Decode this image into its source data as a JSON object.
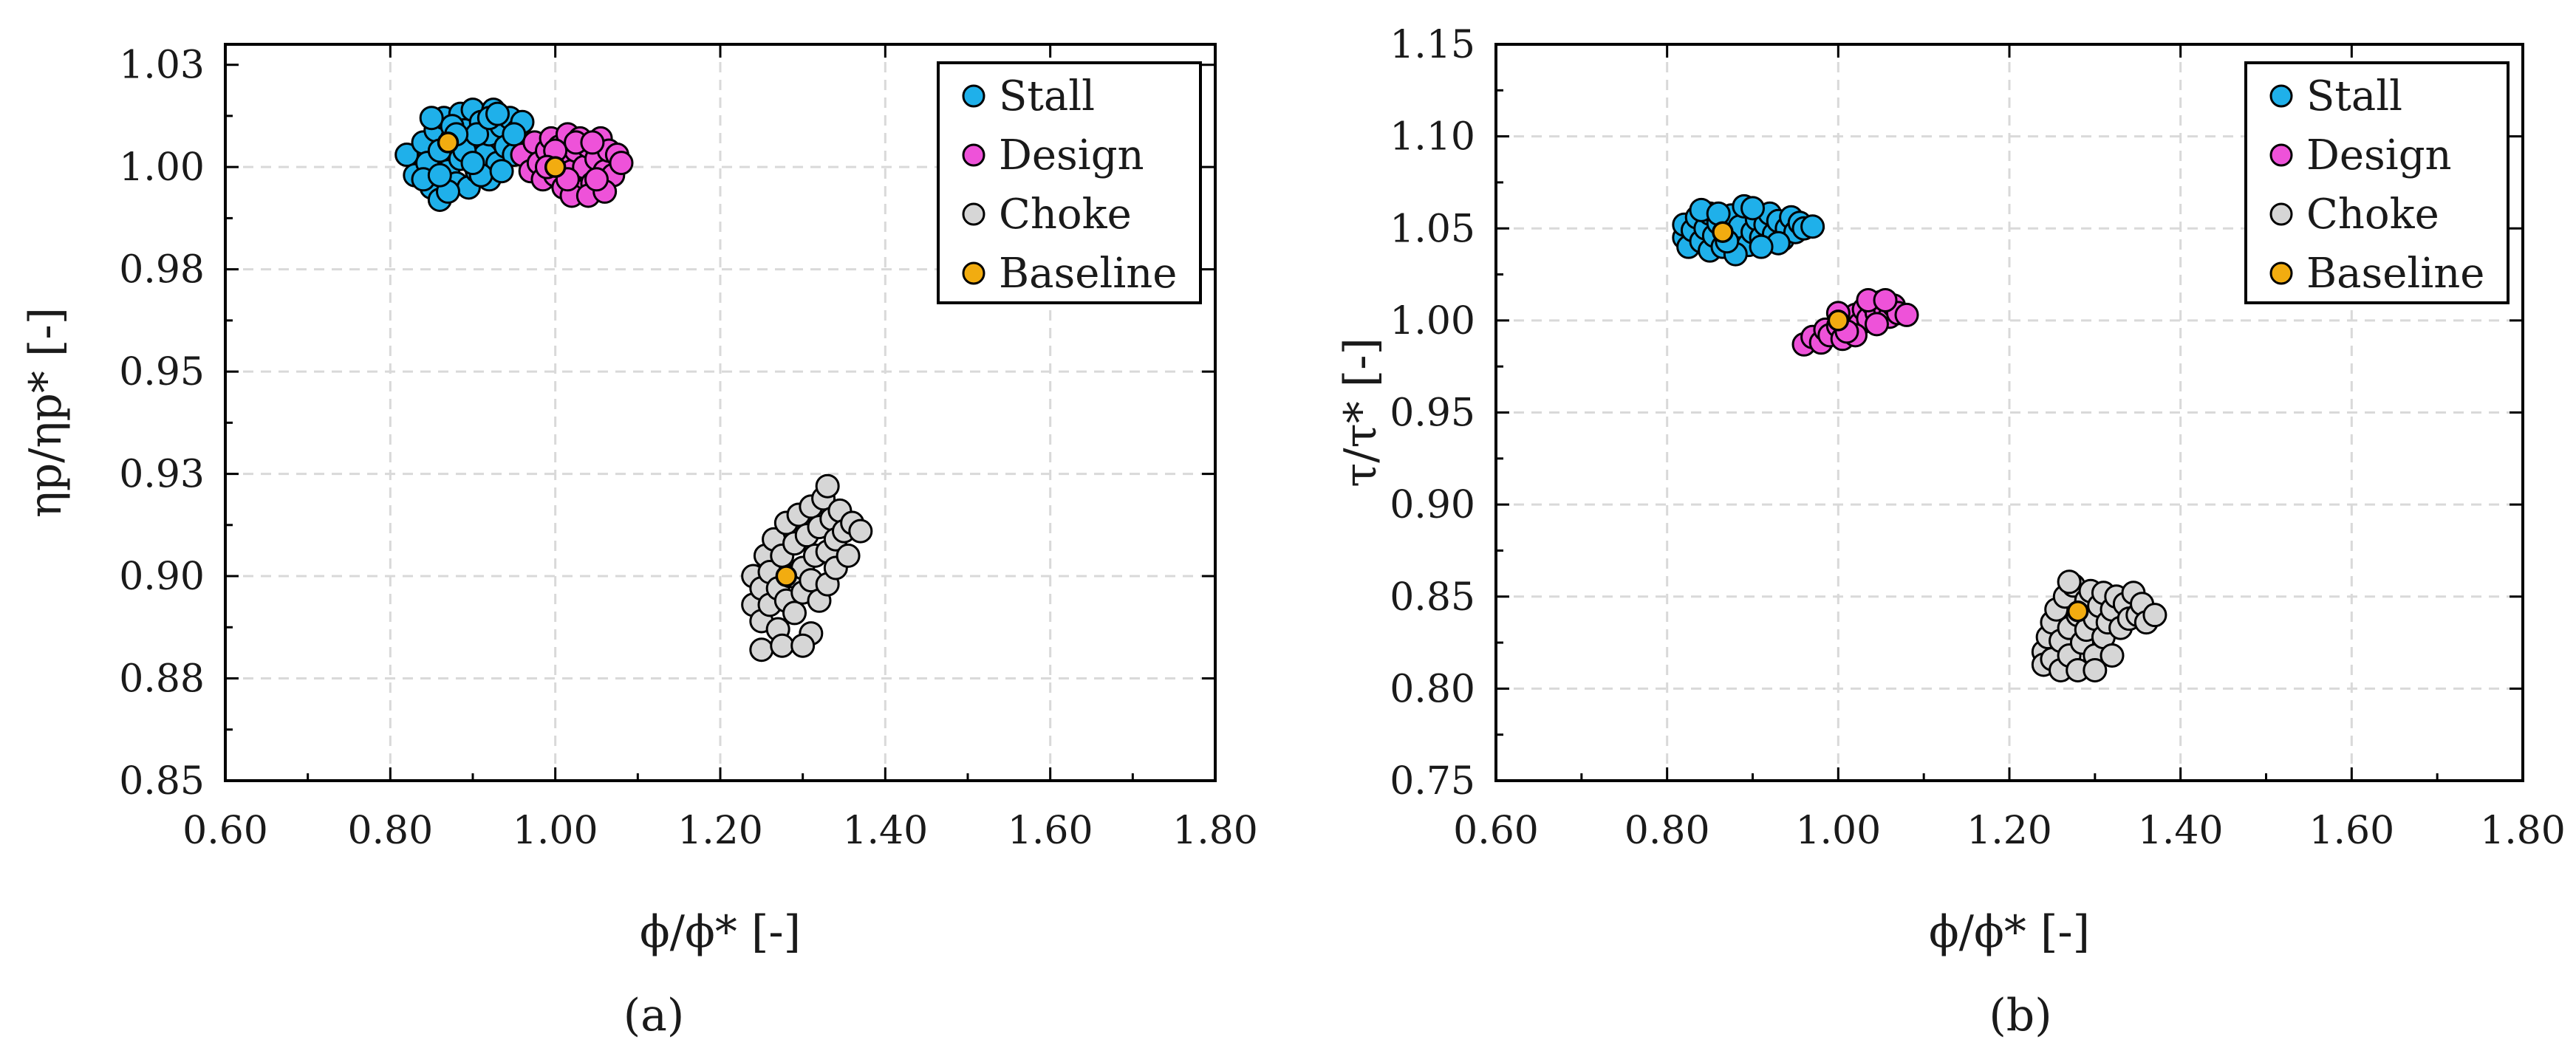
{
  "colors": {
    "stall": "#1fb0ea",
    "design": "#ee52d9",
    "choke": "#d6d6d6",
    "baseline": "#f2ac10"
  },
  "chart_data": [
    {
      "type": "scatter",
      "caption": "(a)",
      "xlabel": "ϕ/ϕ* [-]",
      "ylabel": "ηp/ηp* [-]",
      "xlim": [
        0.6,
        1.8
      ],
      "ylim": [
        0.85,
        1.03
      ],
      "xticks": [
        0.6,
        0.8,
        1.0,
        1.2,
        1.4,
        1.6,
        1.8
      ],
      "xtick_labels": [
        "0.60",
        "0.80",
        "1.00",
        "1.20",
        "1.40",
        "1.60",
        "1.80"
      ],
      "yticks": [
        0.85,
        0.875,
        0.9,
        0.925,
        0.95,
        0.975,
        1.0,
        1.025
      ],
      "ytick_labels": [
        "0.85",
        "0.88",
        "0.90",
        "0.93",
        "0.95",
        "0.98",
        "1.00",
        "1.03"
      ],
      "grid": true,
      "legend_position": "top-right",
      "series": [
        {
          "name": "Stall",
          "color_key": "stall",
          "points": [
            [
              0.82,
              1.003
            ],
            [
              0.83,
              0.998
            ],
            [
              0.84,
              1.006
            ],
            [
              0.845,
              1.001
            ],
            [
              0.85,
              0.995
            ],
            [
              0.855,
              1.009
            ],
            [
              0.86,
              0.992
            ],
            [
              0.86,
              1.004
            ],
            [
              0.865,
              1.012
            ],
            [
              0.87,
              0.999
            ],
            [
              0.875,
              1.007
            ],
            [
              0.88,
              0.996
            ],
            [
              0.885,
              1.013
            ],
            [
              0.885,
              1.002
            ],
            [
              0.89,
              1.009
            ],
            [
              0.895,
              0.995
            ],
            [
              0.9,
              1.005
            ],
            [
              0.9,
              1.014
            ],
            [
              0.905,
              0.999
            ],
            [
              0.91,
              1.011
            ],
            [
              0.915,
              1.003
            ],
            [
              0.92,
              0.997
            ],
            [
              0.92,
              1.008
            ],
            [
              0.925,
              1.014
            ],
            [
              0.93,
              1.001
            ],
            [
              0.935,
              1.01
            ],
            [
              0.94,
              1.005
            ],
            [
              0.945,
              1.012
            ],
            [
              0.95,
              1.003
            ],
            [
              0.955,
              1.009
            ],
            [
              0.96,
              1.011
            ],
            [
              0.875,
              1.01
            ],
            [
              0.89,
              1.004
            ],
            [
              0.905,
              1.008
            ],
            [
              0.92,
              1.012
            ],
            [
              0.87,
              0.994
            ],
            [
              0.91,
              0.998
            ],
            [
              0.935,
              0.999
            ],
            [
              0.85,
              1.012
            ],
            [
              0.84,
              0.997
            ],
            [
              0.93,
              1.013
            ],
            [
              0.88,
              1.008
            ],
            [
              0.86,
              0.998
            ],
            [
              0.9,
              1.001
            ],
            [
              0.95,
              1.008
            ]
          ]
        },
        {
          "name": "Design",
          "color_key": "design",
          "points": [
            [
              0.96,
              1.003
            ],
            [
              0.97,
              0.999
            ],
            [
              0.975,
              1.006
            ],
            [
              0.98,
              1.001
            ],
            [
              0.985,
              0.997
            ],
            [
              0.99,
              1.004
            ],
            [
              0.995,
              1.007
            ],
            [
              1.0,
              0.998
            ],
            [
              1.005,
              1.005
            ],
            [
              1.01,
              0.995
            ],
            [
              1.01,
              1.002
            ],
            [
              1.015,
              1.008
            ],
            [
              1.02,
              0.999
            ],
            [
              1.025,
              1.004
            ],
            [
              1.03,
              0.994
            ],
            [
              1.03,
              1.007
            ],
            [
              1.035,
              1.0
            ],
            [
              1.04,
              1.005
            ],
            [
              1.045,
              0.996
            ],
            [
              1.05,
              1.002
            ],
            [
              1.055,
              1.007
            ],
            [
              1.06,
              0.999
            ],
            [
              1.065,
              1.004
            ],
            [
              1.07,
              0.998
            ],
            [
              1.075,
              1.003
            ],
            [
              1.08,
              1.001
            ],
            [
              1.02,
              0.993
            ],
            [
              1.04,
              0.993
            ],
            [
              1.06,
              0.994
            ],
            [
              1.0,
              1.004
            ],
            [
              1.025,
              1.006
            ],
            [
              1.045,
              1.006
            ],
            [
              1.015,
              0.997
            ],
            [
              1.05,
              0.997
            ],
            [
              0.99,
              1.0
            ]
          ]
        },
        {
          "name": "Choke",
          "color_key": "choke",
          "points": [
            [
              1.24,
              0.9
            ],
            [
              1.24,
              0.893
            ],
            [
              1.25,
              0.897
            ],
            [
              1.25,
              0.889
            ],
            [
              1.255,
              0.905
            ],
            [
              1.26,
              0.901
            ],
            [
              1.26,
              0.893
            ],
            [
              1.265,
              0.909
            ],
            [
              1.27,
              0.897
            ],
            [
              1.27,
              0.887
            ],
            [
              1.275,
              0.905
            ],
            [
              1.28,
              0.913
            ],
            [
              1.28,
              0.894
            ],
            [
              1.285,
              0.9
            ],
            [
              1.29,
              0.908
            ],
            [
              1.29,
              0.891
            ],
            [
              1.295,
              0.915
            ],
            [
              1.3,
              0.902
            ],
            [
              1.3,
              0.896
            ],
            [
              1.305,
              0.91
            ],
            [
              1.31,
              0.917
            ],
            [
              1.31,
              0.899
            ],
            [
              1.315,
              0.905
            ],
            [
              1.32,
              0.912
            ],
            [
              1.32,
              0.894
            ],
            [
              1.325,
              0.919
            ],
            [
              1.33,
              0.906
            ],
            [
              1.33,
              0.898
            ],
            [
              1.335,
              0.914
            ],
            [
              1.34,
              0.909
            ],
            [
              1.34,
              0.902
            ],
            [
              1.345,
              0.916
            ],
            [
              1.35,
              0.911
            ],
            [
              1.355,
              0.905
            ],
            [
              1.36,
              0.913
            ],
            [
              1.37,
              0.911
            ],
            [
              1.33,
              0.922
            ],
            [
              1.31,
              0.886
            ],
            [
              1.25,
              0.882
            ],
            [
              1.275,
              0.883
            ],
            [
              1.3,
              0.883
            ]
          ]
        },
        {
          "name": "Baseline",
          "color_key": "baseline",
          "points": [
            [
              0.87,
              1.006
            ],
            [
              1.0,
              1.0
            ],
            [
              1.28,
              0.9
            ]
          ]
        }
      ]
    },
    {
      "type": "scatter",
      "caption": "(b)",
      "xlabel": "ϕ/ϕ* [-]",
      "ylabel": "τ/τ* [-]",
      "xlim": [
        0.6,
        1.8
      ],
      "ylim": [
        0.75,
        1.15
      ],
      "xticks": [
        0.6,
        0.8,
        1.0,
        1.2,
        1.4,
        1.6,
        1.8
      ],
      "xtick_labels": [
        "0.60",
        "0.80",
        "1.00",
        "1.20",
        "1.40",
        "1.60",
        "1.80"
      ],
      "yticks": [
        0.75,
        0.8,
        0.85,
        0.9,
        0.95,
        1.0,
        1.05,
        1.1,
        1.15
      ],
      "ytick_labels": [
        "0.75",
        "0.80",
        "0.85",
        "0.90",
        "0.95",
        "1.00",
        "1.05",
        "1.10",
        "1.15"
      ],
      "grid": true,
      "legend_position": "top-right",
      "series": [
        {
          "name": "Stall",
          "color_key": "stall",
          "points": [
            [
              0.82,
              1.045
            ],
            [
              0.82,
              1.052
            ],
            [
              0.825,
              1.04
            ],
            [
              0.83,
              1.049
            ],
            [
              0.835,
              1.056
            ],
            [
              0.84,
              1.043
            ],
            [
              0.845,
              1.05
            ],
            [
              0.85,
              1.058
            ],
            [
              0.85,
              1.038
            ],
            [
              0.855,
              1.046
            ],
            [
              0.86,
              1.053
            ],
            [
              0.865,
              1.04
            ],
            [
              0.87,
              1.049
            ],
            [
              0.875,
              1.057
            ],
            [
              0.88,
              1.044
            ],
            [
              0.885,
              1.051
            ],
            [
              0.89,
              1.062
            ],
            [
              0.895,
              1.041
            ],
            [
              0.9,
              1.048
            ],
            [
              0.905,
              1.055
            ],
            [
              0.91,
              1.045
            ],
            [
              0.915,
              1.052
            ],
            [
              0.92,
              1.058
            ],
            [
              0.925,
              1.047
            ],
            [
              0.93,
              1.054
            ],
            [
              0.935,
              1.044
            ],
            [
              0.94,
              1.05
            ],
            [
              0.945,
              1.056
            ],
            [
              0.95,
              1.048
            ],
            [
              0.955,
              1.053
            ],
            [
              0.96,
              1.05
            ],
            [
              0.97,
              1.051
            ],
            [
              0.84,
              1.06
            ],
            [
              0.88,
              1.036
            ],
            [
              0.9,
              1.061
            ],
            [
              0.86,
              1.058
            ],
            [
              0.93,
              1.042
            ],
            [
              0.87,
              1.043
            ],
            [
              0.91,
              1.04
            ]
          ]
        },
        {
          "name": "Design",
          "color_key": "design",
          "points": [
            [
              0.96,
              0.987
            ],
            [
              0.97,
              0.991
            ],
            [
              0.98,
              0.988
            ],
            [
              0.985,
              0.995
            ],
            [
              0.99,
              0.992
            ],
            [
              1.0,
              0.997
            ],
            [
              1.005,
              0.99
            ],
            [
              1.01,
              1.0
            ],
            [
              1.015,
              0.995
            ],
            [
              1.02,
              1.003
            ],
            [
              1.025,
              0.998
            ],
            [
              1.03,
              1.006
            ],
            [
              1.035,
              1.001
            ],
            [
              1.04,
              1.009
            ],
            [
              1.045,
              1.004
            ],
            [
              1.05,
              1.01
            ],
            [
              1.055,
              1.006
            ],
            [
              1.06,
              1.002
            ],
            [
              1.065,
              1.008
            ],
            [
              1.07,
              1.004
            ],
            [
              1.08,
              1.003
            ],
            [
              1.0,
              1.004
            ],
            [
              1.02,
              0.992
            ],
            [
              1.045,
              0.998
            ],
            [
              1.035,
              1.011
            ],
            [
              1.01,
              0.994
            ],
            [
              1.055,
              1.011
            ]
          ]
        },
        {
          "name": "Choke",
          "color_key": "choke",
          "points": [
            [
              1.24,
              0.82
            ],
            [
              1.24,
              0.813
            ],
            [
              1.245,
              0.828
            ],
            [
              1.25,
              0.836
            ],
            [
              1.25,
              0.816
            ],
            [
              1.255,
              0.843
            ],
            [
              1.26,
              0.826
            ],
            [
              1.26,
              0.81
            ],
            [
              1.265,
              0.85
            ],
            [
              1.27,
              0.833
            ],
            [
              1.27,
              0.818
            ],
            [
              1.275,
              0.856
            ],
            [
              1.28,
              0.84
            ],
            [
              1.28,
              0.81
            ],
            [
              1.285,
              0.825
            ],
            [
              1.29,
              0.848
            ],
            [
              1.29,
              0.832
            ],
            [
              1.295,
              0.853
            ],
            [
              1.3,
              0.818
            ],
            [
              1.3,
              0.838
            ],
            [
              1.305,
              0.845
            ],
            [
              1.31,
              0.828
            ],
            [
              1.31,
              0.852
            ],
            [
              1.315,
              0.836
            ],
            [
              1.32,
              0.843
            ],
            [
              1.32,
              0.818
            ],
            [
              1.325,
              0.85
            ],
            [
              1.33,
              0.833
            ],
            [
              1.335,
              0.846
            ],
            [
              1.34,
              0.838
            ],
            [
              1.345,
              0.852
            ],
            [
              1.35,
              0.84
            ],
            [
              1.355,
              0.846
            ],
            [
              1.36,
              0.836
            ],
            [
              1.37,
              0.84
            ],
            [
              1.27,
              0.858
            ],
            [
              1.3,
              0.81
            ]
          ]
        },
        {
          "name": "Baseline",
          "color_key": "baseline",
          "points": [
            [
              0.865,
              1.048
            ],
            [
              1.0,
              1.0
            ],
            [
              1.28,
              0.842
            ]
          ]
        }
      ]
    }
  ]
}
